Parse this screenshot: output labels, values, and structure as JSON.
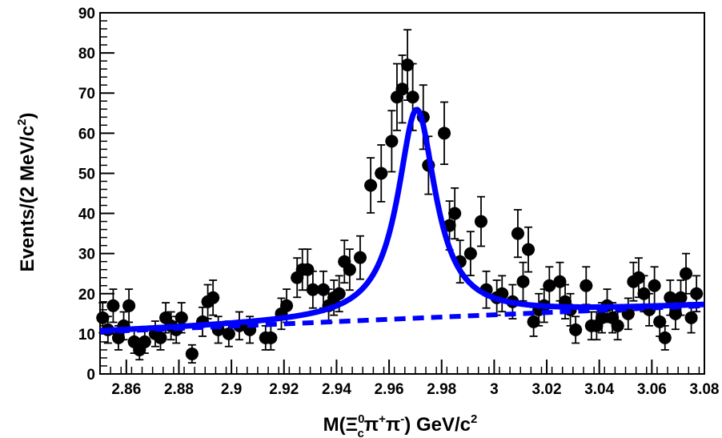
{
  "chart_data": {
    "type": "scatter",
    "title": "",
    "xlabel": {
      "pre": "M(",
      "xi": "Ξ",
      "xi_sup": "0",
      "xi_sub": "c",
      "pi1": "π",
      "pi1_sup": "+",
      "pi2": "π",
      "pi2_sup": "-",
      "post": ") GeV/c",
      "post_sup": "2"
    },
    "ylabel": {
      "pre": "Events/(2 MeV/c",
      "sup": "2",
      "post": ")"
    },
    "xlim": [
      2.85,
      3.08
    ],
    "ylim": [
      0,
      90
    ],
    "xticks": [
      "2.86",
      "2.88",
      "2.9",
      "2.92",
      "2.94",
      "2.96",
      "2.98",
      "3",
      "3.02",
      "3.04",
      "3.06",
      "3.08"
    ],
    "yticks": [
      "0",
      "10",
      "20",
      "30",
      "40",
      "50",
      "60",
      "70",
      "80",
      "90"
    ],
    "colors": {
      "fit": "#0000ff",
      "points": "#000000",
      "axis": "#000000"
    },
    "points": [
      {
        "x": 2.851,
        "y": 14
      },
      {
        "x": 2.853,
        "y": 11
      },
      {
        "x": 2.855,
        "y": 17
      },
      {
        "x": 2.857,
        "y": 9
      },
      {
        "x": 2.859,
        "y": 12
      },
      {
        "x": 2.861,
        "y": 17
      },
      {
        "x": 2.863,
        "y": 8
      },
      {
        "x": 2.865,
        "y": 6
      },
      {
        "x": 2.867,
        "y": 8
      },
      {
        "x": 2.871,
        "y": 10
      },
      {
        "x": 2.873,
        "y": 9
      },
      {
        "x": 2.875,
        "y": 14
      },
      {
        "x": 2.877,
        "y": 12
      },
      {
        "x": 2.879,
        "y": 11
      },
      {
        "x": 2.881,
        "y": 14
      },
      {
        "x": 2.885,
        "y": 5
      },
      {
        "x": 2.889,
        "y": 13
      },
      {
        "x": 2.891,
        "y": 18
      },
      {
        "x": 2.893,
        "y": 19
      },
      {
        "x": 2.895,
        "y": 11
      },
      {
        "x": 2.899,
        "y": 10
      },
      {
        "x": 2.903,
        "y": 12
      },
      {
        "x": 2.907,
        "y": 11
      },
      {
        "x": 2.913,
        "y": 9
      },
      {
        "x": 2.915,
        "y": 9
      },
      {
        "x": 2.919,
        "y": 15
      },
      {
        "x": 2.921,
        "y": 17
      },
      {
        "x": 2.925,
        "y": 24
      },
      {
        "x": 2.927,
        "y": 26
      },
      {
        "x": 2.929,
        "y": 26
      },
      {
        "x": 2.931,
        "y": 21
      },
      {
        "x": 2.935,
        "y": 21
      },
      {
        "x": 2.937,
        "y": 17
      },
      {
        "x": 2.939,
        "y": 19
      },
      {
        "x": 2.941,
        "y": 20
      },
      {
        "x": 2.943,
        "y": 28
      },
      {
        "x": 2.945,
        "y": 26
      },
      {
        "x": 2.949,
        "y": 29
      },
      {
        "x": 2.953,
        "y": 47
      },
      {
        "x": 2.957,
        "y": 50
      },
      {
        "x": 2.961,
        "y": 58
      },
      {
        "x": 2.963,
        "y": 69
      },
      {
        "x": 2.965,
        "y": 71
      },
      {
        "x": 2.967,
        "y": 77
      },
      {
        "x": 2.969,
        "y": 69
      },
      {
        "x": 2.973,
        "y": 64
      },
      {
        "x": 2.975,
        "y": 52
      },
      {
        "x": 2.981,
        "y": 60
      },
      {
        "x": 2.983,
        "y": 37
      },
      {
        "x": 2.985,
        "y": 40
      },
      {
        "x": 2.987,
        "y": 28
      },
      {
        "x": 2.991,
        "y": 30
      },
      {
        "x": 2.995,
        "y": 38
      },
      {
        "x": 2.997,
        "y": 21
      },
      {
        "x": 3.001,
        "y": 19
      },
      {
        "x": 3.003,
        "y": 20
      },
      {
        "x": 3.007,
        "y": 18
      },
      {
        "x": 3.009,
        "y": 35
      },
      {
        "x": 3.011,
        "y": 23
      },
      {
        "x": 3.013,
        "y": 31
      },
      {
        "x": 3.015,
        "y": 13
      },
      {
        "x": 3.017,
        "y": 16
      },
      {
        "x": 3.019,
        "y": 17
      },
      {
        "x": 3.021,
        "y": 22
      },
      {
        "x": 3.025,
        "y": 23
      },
      {
        "x": 3.027,
        "y": 18
      },
      {
        "x": 3.029,
        "y": 16
      },
      {
        "x": 3.031,
        "y": 11
      },
      {
        "x": 3.035,
        "y": 22
      },
      {
        "x": 3.037,
        "y": 12
      },
      {
        "x": 3.039,
        "y": 12
      },
      {
        "x": 3.041,
        "y": 14
      },
      {
        "x": 3.043,
        "y": 17
      },
      {
        "x": 3.045,
        "y": 14
      },
      {
        "x": 3.047,
        "y": 12
      },
      {
        "x": 3.051,
        "y": 15
      },
      {
        "x": 3.053,
        "y": 23
      },
      {
        "x": 3.055,
        "y": 24
      },
      {
        "x": 3.057,
        "y": 20
      },
      {
        "x": 3.059,
        "y": 16
      },
      {
        "x": 3.061,
        "y": 22
      },
      {
        "x": 3.063,
        "y": 13
      },
      {
        "x": 3.065,
        "y": 9
      },
      {
        "x": 3.067,
        "y": 19
      },
      {
        "x": 3.069,
        "y": 15
      },
      {
        "x": 3.071,
        "y": 19
      },
      {
        "x": 3.073,
        "y": 25
      },
      {
        "x": 3.075,
        "y": 14
      },
      {
        "x": 3.077,
        "y": 20
      }
    ],
    "fit": {
      "signal": {
        "mean": 2.9705,
        "width": 0.0175,
        "amplitude": 52
      },
      "background": {
        "x0": 2.85,
        "y0": 10.5,
        "x1": 3.08,
        "y1": 17.0
      }
    }
  }
}
